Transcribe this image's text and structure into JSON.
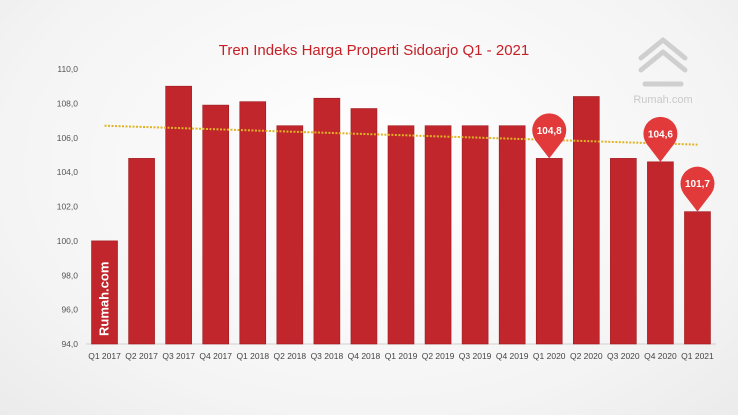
{
  "chart_data": {
    "type": "bar",
    "title": "Tren Indeks Harga Properti Sidoarjo Q1 - 2021",
    "categories": [
      "Q1 2017",
      "Q2 2017",
      "Q3 2017",
      "Q4 2017",
      "Q1 2018",
      "Q2 2018",
      "Q3 2018",
      "Q4 2018",
      "Q1 2019",
      "Q2 2019",
      "Q3 2019",
      "Q4 2019",
      "Q1 2020",
      "Q2 2020",
      "Q3 2020",
      "Q4 2020",
      "Q1 2021"
    ],
    "values": [
      100.0,
      104.8,
      109.0,
      107.9,
      108.1,
      106.7,
      108.3,
      107.7,
      106.7,
      106.7,
      106.7,
      106.7,
      104.8,
      108.4,
      104.8,
      104.6,
      101.7
    ],
    "ylim": [
      94,
      110
    ],
    "yticks": [
      "94,0",
      "96,0",
      "98,0",
      "100,0",
      "102,0",
      "104,0",
      "106,0",
      "108,0",
      "110,0"
    ],
    "ytick_values": [
      94,
      96,
      98,
      100,
      102,
      104,
      106,
      108,
      110
    ],
    "trendline": {
      "start": 106.7,
      "end": 105.6
    },
    "callouts": [
      {
        "index": 12,
        "label": "104,8"
      },
      {
        "index": 15,
        "label": "104,6"
      },
      {
        "index": 16,
        "label": "101,7"
      }
    ],
    "xlabel": "",
    "ylabel": "",
    "grid": false,
    "colors": {
      "bar": "#c0262b",
      "bar_edge": "#9e1a1f",
      "trend": "#e0b324",
      "pin": "#e23a3a",
      "title": "#c62026"
    }
  },
  "watermark": {
    "brand": "Rumah.com",
    "bar_text": "Rumah.com",
    "logo_icon": "house-logo-icon"
  }
}
